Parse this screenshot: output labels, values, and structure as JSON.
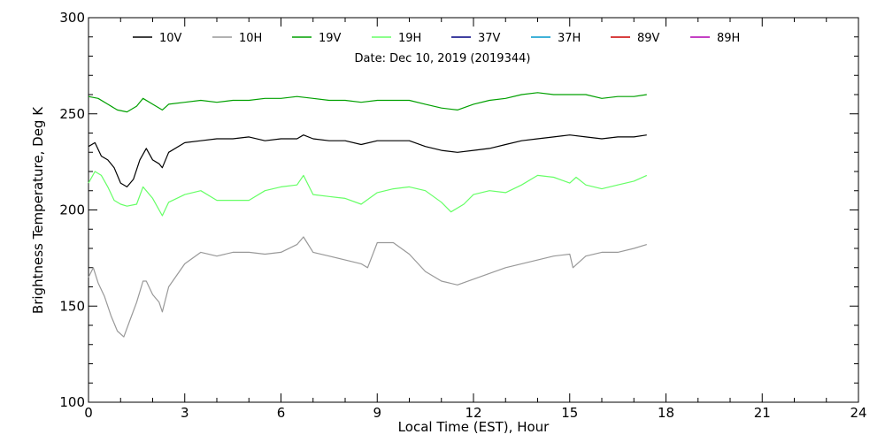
{
  "chart_data": {
    "type": "line",
    "subtitle": "Date: Dec 10, 2019 (2019344)",
    "xlabel": "Local Time (EST), Hour",
    "ylabel": "Brightness Temperature, Deg K",
    "xlim": [
      0,
      24
    ],
    "ylim": [
      100,
      300
    ],
    "xticks": [
      0,
      3,
      6,
      9,
      12,
      15,
      18,
      21,
      24
    ],
    "xtick_labels": [
      "0",
      "3",
      "6",
      "9",
      "12",
      "15",
      "18",
      "21",
      "24"
    ],
    "yticks": [
      100,
      150,
      200,
      250,
      300
    ],
    "ytick_labels": [
      "100",
      "150",
      "200",
      "250",
      "300"
    ],
    "grid": false,
    "legend_position": "top",
    "series": [
      {
        "name": "10V",
        "color": "#000000",
        "x": [
          0,
          0.2,
          0.4,
          0.6,
          0.8,
          1,
          1.2,
          1.4,
          1.6,
          1.8,
          2,
          2.2,
          2.3,
          2.5,
          3,
          3.5,
          4,
          4.5,
          5,
          5.5,
          6,
          6.5,
          6.7,
          7,
          7.5,
          8,
          8.5,
          9,
          9.5,
          10,
          10.5,
          11,
          11.5,
          12,
          12.5,
          13,
          13.5,
          14,
          14.5,
          15,
          15.5,
          16,
          16.5,
          17,
          17.4
        ],
        "y": [
          233,
          235,
          228,
          226,
          222,
          214,
          212,
          216,
          226,
          232,
          226,
          224,
          222,
          230,
          235,
          236,
          237,
          237,
          238,
          236,
          237,
          237,
          239,
          237,
          236,
          236,
          234,
          236,
          236,
          236,
          233,
          231,
          230,
          231,
          232,
          234,
          236,
          237,
          238,
          239,
          238,
          237,
          238,
          238,
          239
        ]
      },
      {
        "name": "10H",
        "color": "#999999",
        "x": [
          0,
          0.15,
          0.3,
          0.5,
          0.7,
          0.9,
          1.1,
          1.3,
          1.5,
          1.7,
          1.8,
          2,
          2.2,
          2.3,
          2.5,
          3,
          3.5,
          4,
          4.5,
          5,
          5.5,
          6,
          6.5,
          6.7,
          7,
          7.5,
          8,
          8.5,
          8.7,
          9,
          9.5,
          10,
          10.5,
          11,
          11.5,
          12,
          12.5,
          13,
          13.5,
          14,
          14.5,
          15,
          15.1,
          15.5,
          16,
          16.5,
          17,
          17.4
        ],
        "y": [
          165,
          170,
          162,
          155,
          145,
          137,
          134,
          143,
          152,
          163,
          163,
          156,
          152,
          147,
          160,
          172,
          178,
          176,
          178,
          178,
          177,
          178,
          182,
          186,
          178,
          176,
          174,
          172,
          170,
          183,
          183,
          177,
          168,
          163,
          161,
          164,
          167,
          170,
          172,
          174,
          176,
          177,
          170,
          176,
          178,
          178,
          180,
          182
        ]
      },
      {
        "name": "19V",
        "color": "#00a000",
        "x": [
          0,
          0.3,
          0.6,
          0.9,
          1.2,
          1.5,
          1.7,
          2,
          2.3,
          2.5,
          3,
          3.5,
          4,
          4.5,
          5,
          5.5,
          6,
          6.5,
          7,
          7.5,
          8,
          8.5,
          9,
          9.5,
          10,
          10.5,
          11,
          11.5,
          12,
          12.5,
          13,
          13.5,
          14,
          14.5,
          15,
          15.5,
          16,
          16.5,
          17,
          17.4
        ],
        "y": [
          259,
          258,
          255,
          252,
          251,
          254,
          258,
          255,
          252,
          255,
          256,
          257,
          256,
          257,
          257,
          258,
          258,
          259,
          258,
          257,
          257,
          256,
          257,
          257,
          257,
          255,
          253,
          252,
          255,
          257,
          258,
          260,
          261,
          260,
          260,
          260,
          258,
          259,
          259,
          260
        ]
      },
      {
        "name": "19H",
        "color": "#66ff66",
        "x": [
          0,
          0.2,
          0.4,
          0.6,
          0.8,
          1,
          1.2,
          1.5,
          1.7,
          2,
          2.3,
          2.5,
          3,
          3.5,
          4,
          4.5,
          5,
          5.5,
          6,
          6.5,
          6.7,
          7,
          7.5,
          8,
          8.5,
          9,
          9.5,
          10,
          10.5,
          11,
          11.3,
          11.7,
          12,
          12.5,
          13,
          13.5,
          14,
          14.5,
          15,
          15.2,
          15.5,
          16,
          16.5,
          17,
          17.4
        ],
        "y": [
          214,
          220,
          218,
          212,
          205,
          203,
          202,
          203,
          212,
          206,
          197,
          204,
          208,
          210,
          205,
          205,
          205,
          210,
          212,
          213,
          218,
          208,
          207,
          206,
          203,
          209,
          211,
          212,
          210,
          204,
          199,
          203,
          208,
          210,
          209,
          213,
          218,
          217,
          214,
          217,
          213,
          211,
          213,
          215,
          218
        ]
      },
      {
        "name": "37V",
        "color": "#000080",
        "x": [],
        "y": []
      },
      {
        "name": "37H",
        "color": "#0099cc",
        "x": [],
        "y": []
      },
      {
        "name": "89V",
        "color": "#cc0000",
        "x": [],
        "y": []
      },
      {
        "name": "89H",
        "color": "#b000b0",
        "x": [],
        "y": []
      }
    ]
  }
}
